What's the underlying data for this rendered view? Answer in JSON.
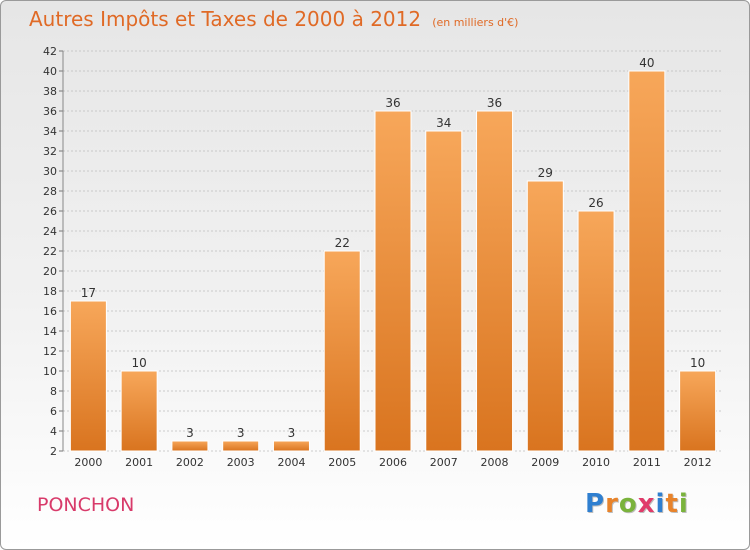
{
  "title": "Autres Impôts et Taxes de 2000 à 2012",
  "unit_label": "(en milliers d'€)",
  "commune": "PONCHON",
  "brand": "Proxiti",
  "brand_letters": [
    {
      "ch": "P",
      "color": "#2f7fd0"
    },
    {
      "ch": "r",
      "color": "#e8832a"
    },
    {
      "ch": "o",
      "color": "#7ab33c"
    },
    {
      "ch": "x",
      "color": "#e03b6a"
    },
    {
      "ch": "i",
      "color": "#2f7fd0"
    },
    {
      "ch": "t",
      "color": "#e8832a"
    },
    {
      "ch": "i",
      "color": "#7ab33c"
    }
  ],
  "colors": {
    "title": "#e06a26",
    "bar_light": "#f7a75a",
    "bar_dark": "#d9741f",
    "grid": "#bdbdbd",
    "axis_text": "#333333",
    "commune": "#d83a6a"
  },
  "chart_data": {
    "type": "bar",
    "title": "Autres Impôts et Taxes de 2000 à 2012",
    "categories": [
      "2000",
      "2001",
      "2002",
      "2003",
      "2004",
      "2005",
      "2006",
      "2007",
      "2008",
      "2009",
      "2010",
      "2011",
      "2012"
    ],
    "values": [
      17,
      10,
      3,
      3,
      3,
      22,
      36,
      34,
      36,
      29,
      26,
      40,
      10
    ],
    "data_labels": [
      "17",
      "10",
      "3",
      "3",
      "3",
      "22",
      "36",
      "34",
      "36",
      "29",
      "26",
      "40",
      "10"
    ],
    "ylim": [
      2,
      42
    ],
    "yticks": [
      2,
      4,
      6,
      8,
      10,
      12,
      14,
      16,
      18,
      20,
      22,
      24,
      26,
      28,
      30,
      32,
      34,
      36,
      38,
      40,
      42
    ],
    "ytick_labels": [
      "2",
      "4",
      "6",
      "8",
      "10",
      "12",
      "14",
      "16",
      "18",
      "20",
      "22",
      "24",
      "26",
      "28",
      "30",
      "32",
      "34",
      "36",
      "38",
      "40",
      "42"
    ],
    "xlabel": "",
    "ylabel": "",
    "grid": true,
    "legend": "none"
  }
}
